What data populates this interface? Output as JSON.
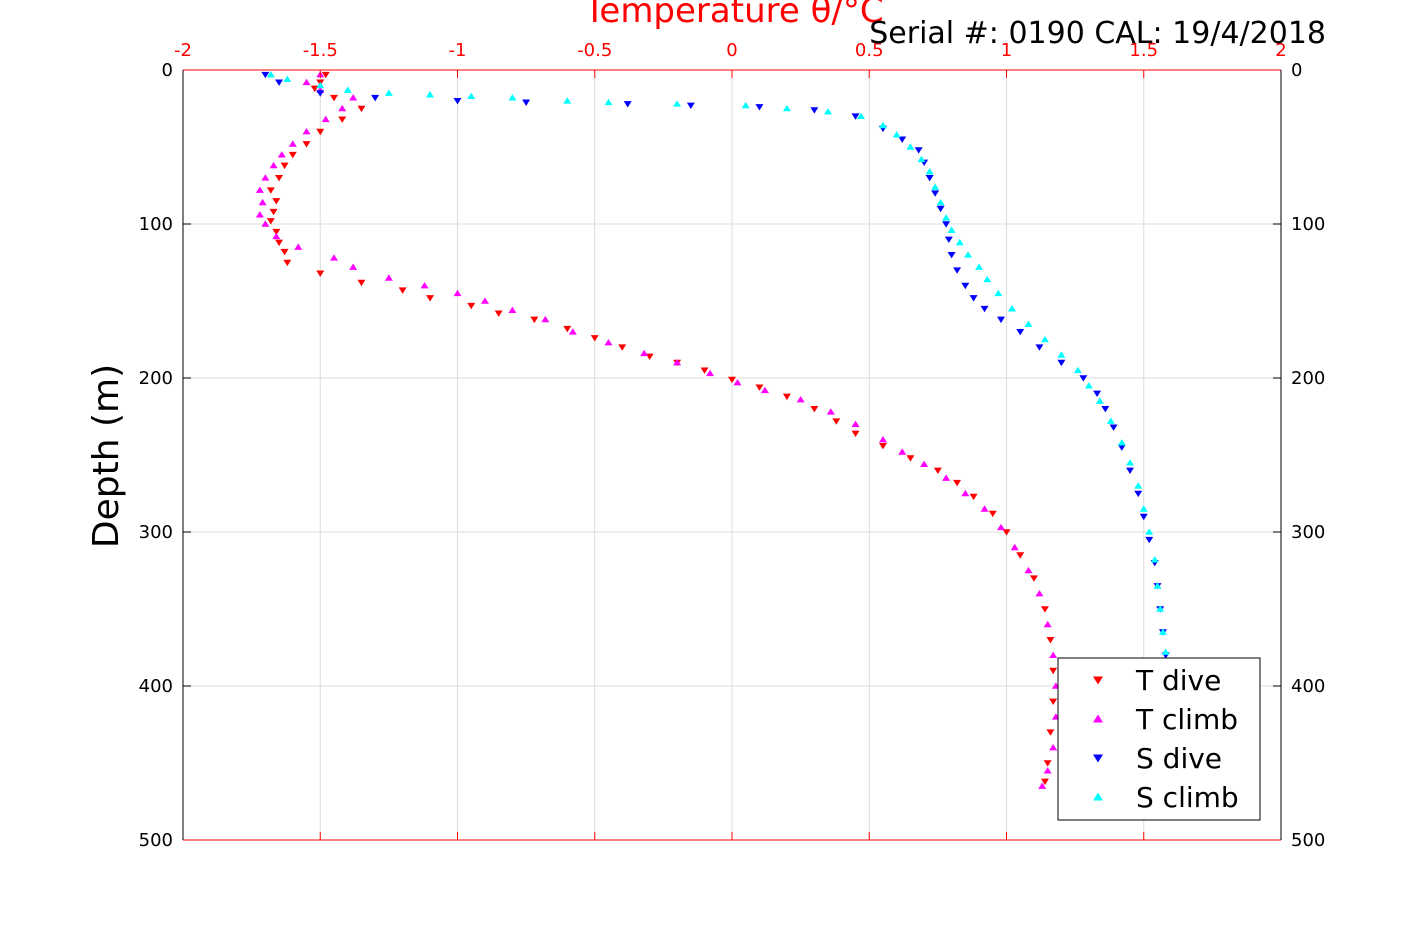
{
  "chart_data": {
    "type": "scatter",
    "title": "Temperature θ/°C",
    "subtitle": "Serial #: 0190  CAL: 19/4/2018",
    "ylabel": "Depth (m)",
    "xlim": [
      -2,
      2
    ],
    "ylim": [
      0,
      500
    ],
    "y_reversed": true,
    "grid": true,
    "legend_placement": "bottom-right",
    "x_ticks": [
      "-2",
      "-1.5",
      "-1",
      "-0.5",
      "0",
      "0.5",
      "1",
      "1.5",
      "2"
    ],
    "y_ticks": [
      "0",
      "100",
      "200",
      "300",
      "400",
      "500"
    ],
    "colors": {
      "title": "#ff0000",
      "top_axis": "#ff0000",
      "frame": "#000000"
    },
    "series": [
      {
        "name": "T dive",
        "marker": "triangle-down",
        "color": "#ff0000",
        "points": [
          [
            -1.48,
            3
          ],
          [
            -1.5,
            8
          ],
          [
            -1.52,
            12
          ],
          [
            -1.45,
            18
          ],
          [
            -1.35,
            25
          ],
          [
            -1.42,
            32
          ],
          [
            -1.5,
            40
          ],
          [
            -1.55,
            48
          ],
          [
            -1.6,
            55
          ],
          [
            -1.63,
            62
          ],
          [
            -1.65,
            70
          ],
          [
            -1.68,
            78
          ],
          [
            -1.66,
            85
          ],
          [
            -1.67,
            92
          ],
          [
            -1.68,
            98
          ],
          [
            -1.66,
            105
          ],
          [
            -1.65,
            112
          ],
          [
            -1.63,
            118
          ],
          [
            -1.62,
            125
          ],
          [
            -1.5,
            132
          ],
          [
            -1.35,
            138
          ],
          [
            -1.2,
            143
          ],
          [
            -1.1,
            148
          ],
          [
            -0.95,
            153
          ],
          [
            -0.85,
            158
          ],
          [
            -0.72,
            162
          ],
          [
            -0.6,
            168
          ],
          [
            -0.5,
            174
          ],
          [
            -0.4,
            180
          ],
          [
            -0.3,
            186
          ],
          [
            -0.2,
            190
          ],
          [
            -0.1,
            195
          ],
          [
            0.0,
            201
          ],
          [
            0.1,
            206
          ],
          [
            0.2,
            212
          ],
          [
            0.3,
            220
          ],
          [
            0.38,
            228
          ],
          [
            0.45,
            236
          ],
          [
            0.55,
            244
          ],
          [
            0.65,
            252
          ],
          [
            0.75,
            260
          ],
          [
            0.82,
            268
          ],
          [
            0.88,
            277
          ],
          [
            0.95,
            288
          ],
          [
            1.0,
            300
          ],
          [
            1.05,
            315
          ],
          [
            1.1,
            330
          ],
          [
            1.14,
            350
          ],
          [
            1.16,
            370
          ],
          [
            1.17,
            390
          ],
          [
            1.17,
            410
          ],
          [
            1.16,
            430
          ],
          [
            1.15,
            450
          ],
          [
            1.14,
            462
          ]
        ]
      },
      {
        "name": "T climb",
        "marker": "triangle-up",
        "color": "#ff00ff",
        "points": [
          [
            -1.5,
            3
          ],
          [
            -1.55,
            8
          ],
          [
            -1.5,
            13
          ],
          [
            -1.38,
            18
          ],
          [
            -1.42,
            25
          ],
          [
            -1.48,
            32
          ],
          [
            -1.55,
            40
          ],
          [
            -1.6,
            48
          ],
          [
            -1.64,
            55
          ],
          [
            -1.67,
            62
          ],
          [
            -1.7,
            70
          ],
          [
            -1.72,
            78
          ],
          [
            -1.71,
            86
          ],
          [
            -1.72,
            94
          ],
          [
            -1.7,
            100
          ],
          [
            -1.66,
            108
          ],
          [
            -1.58,
            115
          ],
          [
            -1.45,
            122
          ],
          [
            -1.38,
            128
          ],
          [
            -1.25,
            135
          ],
          [
            -1.12,
            140
          ],
          [
            -1.0,
            145
          ],
          [
            -0.9,
            150
          ],
          [
            -0.8,
            156
          ],
          [
            -0.68,
            162
          ],
          [
            -0.58,
            170
          ],
          [
            -0.45,
            177
          ],
          [
            -0.32,
            184
          ],
          [
            -0.2,
            190
          ],
          [
            -0.08,
            197
          ],
          [
            0.02,
            203
          ],
          [
            0.12,
            208
          ],
          [
            0.25,
            214
          ],
          [
            0.36,
            222
          ],
          [
            0.45,
            230
          ],
          [
            0.55,
            240
          ],
          [
            0.62,
            248
          ],
          [
            0.7,
            256
          ],
          [
            0.78,
            265
          ],
          [
            0.85,
            275
          ],
          [
            0.92,
            285
          ],
          [
            0.98,
            297
          ],
          [
            1.03,
            310
          ],
          [
            1.08,
            325
          ],
          [
            1.12,
            340
          ],
          [
            1.15,
            360
          ],
          [
            1.17,
            380
          ],
          [
            1.18,
            400
          ],
          [
            1.18,
            420
          ],
          [
            1.17,
            440
          ],
          [
            1.15,
            455
          ],
          [
            1.13,
            465
          ]
        ]
      },
      {
        "name": "S dive",
        "marker": "triangle-down",
        "color": "#0000ff",
        "points": [
          [
            -1.7,
            3
          ],
          [
            -1.65,
            8
          ],
          [
            -1.5,
            15
          ],
          [
            -1.3,
            18
          ],
          [
            -1.0,
            20
          ],
          [
            -0.75,
            21
          ],
          [
            -0.38,
            22
          ],
          [
            -0.15,
            23
          ],
          [
            0.1,
            24
          ],
          [
            0.3,
            26
          ],
          [
            0.45,
            30
          ],
          [
            0.55,
            38
          ],
          [
            0.62,
            45
          ],
          [
            0.68,
            52
          ],
          [
            0.7,
            60
          ],
          [
            0.72,
            70
          ],
          [
            0.74,
            80
          ],
          [
            0.76,
            90
          ],
          [
            0.78,
            100
          ],
          [
            0.79,
            110
          ],
          [
            0.8,
            120
          ],
          [
            0.82,
            130
          ],
          [
            0.85,
            140
          ],
          [
            0.88,
            148
          ],
          [
            0.92,
            155
          ],
          [
            0.98,
            162
          ],
          [
            1.05,
            170
          ],
          [
            1.12,
            180
          ],
          [
            1.2,
            190
          ],
          [
            1.28,
            200
          ],
          [
            1.33,
            210
          ],
          [
            1.36,
            220
          ],
          [
            1.39,
            232
          ],
          [
            1.42,
            245
          ],
          [
            1.45,
            260
          ],
          [
            1.48,
            275
          ],
          [
            1.5,
            290
          ],
          [
            1.52,
            305
          ],
          [
            1.54,
            320
          ],
          [
            1.55,
            335
          ],
          [
            1.56,
            350
          ],
          [
            1.57,
            365
          ],
          [
            1.58,
            380
          ]
        ]
      },
      {
        "name": "S climb",
        "marker": "triangle-up",
        "color": "#00ffff",
        "points": [
          [
            -1.68,
            3
          ],
          [
            -1.62,
            6
          ],
          [
            -1.5,
            10
          ],
          [
            -1.4,
            13
          ],
          [
            -1.25,
            15
          ],
          [
            -1.1,
            16
          ],
          [
            -0.95,
            17
          ],
          [
            -0.8,
            18
          ],
          [
            -0.6,
            20
          ],
          [
            -0.45,
            21
          ],
          [
            -0.2,
            22
          ],
          [
            0.05,
            23
          ],
          [
            0.2,
            25
          ],
          [
            0.35,
            27
          ],
          [
            0.47,
            30
          ],
          [
            0.55,
            36
          ],
          [
            0.6,
            42
          ],
          [
            0.65,
            50
          ],
          [
            0.69,
            58
          ],
          [
            0.72,
            66
          ],
          [
            0.74,
            76
          ],
          [
            0.76,
            86
          ],
          [
            0.78,
            96
          ],
          [
            0.8,
            104
          ],
          [
            0.83,
            112
          ],
          [
            0.86,
            120
          ],
          [
            0.9,
            128
          ],
          [
            0.93,
            136
          ],
          [
            0.97,
            145
          ],
          [
            1.02,
            155
          ],
          [
            1.08,
            165
          ],
          [
            1.14,
            175
          ],
          [
            1.2,
            185
          ],
          [
            1.26,
            195
          ],
          [
            1.3,
            205
          ],
          [
            1.34,
            215
          ],
          [
            1.38,
            228
          ],
          [
            1.42,
            242
          ],
          [
            1.45,
            255
          ],
          [
            1.48,
            270
          ],
          [
            1.5,
            285
          ],
          [
            1.52,
            300
          ],
          [
            1.54,
            318
          ],
          [
            1.55,
            335
          ],
          [
            1.56,
            350
          ],
          [
            1.57,
            365
          ],
          [
            1.58,
            378
          ]
        ]
      }
    ]
  }
}
